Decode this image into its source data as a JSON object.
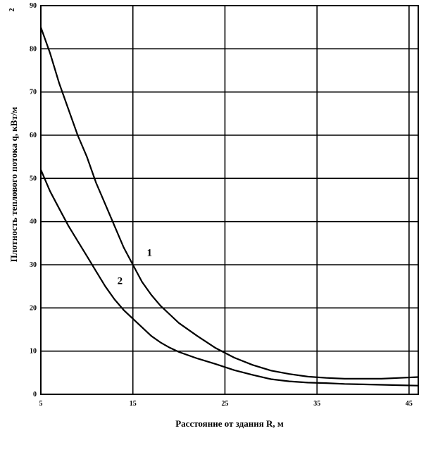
{
  "chart_data": {
    "type": "line",
    "title": "",
    "xlabel": "Расстояние от здания R, м",
    "ylabel": "Плотность теплового потока q, кВт/м",
    "ylabel_superscript": "2",
    "xlim": [
      5,
      46
    ],
    "ylim": [
      0,
      90
    ],
    "x_ticks": [
      5,
      15,
      25,
      35,
      45
    ],
    "y_ticks": [
      0,
      10,
      20,
      30,
      40,
      50,
      60,
      70,
      80,
      90
    ],
    "grid": true,
    "series": [
      {
        "name": "1",
        "x": [
          5,
          6,
          7,
          8,
          9,
          10,
          11,
          12,
          13,
          14,
          15,
          16,
          17,
          18,
          19,
          20,
          22,
          24,
          26,
          28,
          30,
          32,
          34,
          36,
          38,
          40,
          42,
          44,
          46
        ],
        "y": [
          85,
          79,
          72,
          66,
          60,
          55,
          49,
          44,
          39,
          34,
          30,
          26,
          23,
          20.5,
          18.5,
          16.5,
          13.5,
          10.7,
          8.5,
          6.8,
          5.5,
          4.7,
          4.1,
          3.8,
          3.6,
          3.6,
          3.6,
          3.8,
          4.0
        ]
      },
      {
        "name": "2",
        "x": [
          5,
          6,
          7,
          8,
          9,
          10,
          11,
          12,
          13,
          14,
          15,
          16,
          17,
          18,
          19,
          20,
          22,
          24,
          26,
          28,
          30,
          32,
          34,
          36,
          38,
          40,
          42,
          44,
          46
        ],
        "y": [
          52,
          47,
          43,
          39,
          35.5,
          32,
          28.5,
          25,
          22,
          19.5,
          17.5,
          15.5,
          13.5,
          12,
          10.8,
          9.8,
          8.3,
          7.0,
          5.6,
          4.5,
          3.5,
          3.0,
          2.7,
          2.6,
          2.4,
          2.3,
          2.2,
          2.1,
          2.0
        ]
      }
    ],
    "annotations": [
      {
        "text": "1",
        "x": 16.8,
        "y": 32
      },
      {
        "text": "2",
        "x": 13.6,
        "y": 25.5
      }
    ]
  }
}
